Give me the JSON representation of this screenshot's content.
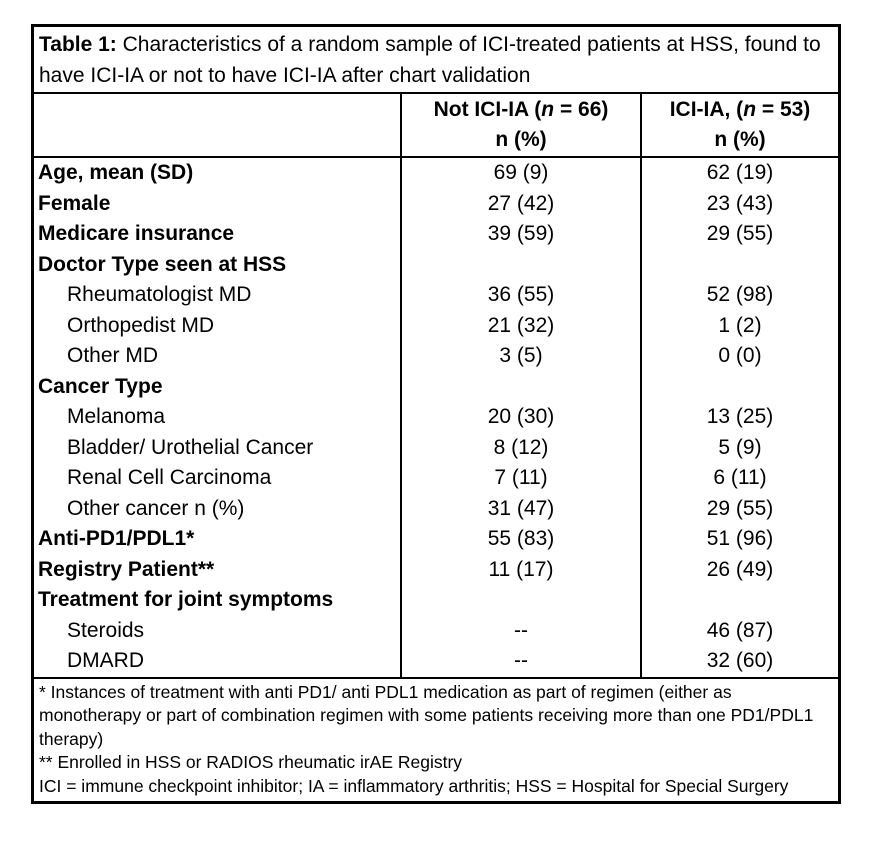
{
  "table": {
    "title": {
      "label": "Table 1:",
      "text": " Characteristics of a random sample of ICI-treated patients at HSS, found to have ICI-IA or not to have ICI-IA after chart validation"
    },
    "columns": [
      {
        "pre": "Not ICI-IA (",
        "n": "n",
        "post": " = 66)",
        "line2": "n (%)"
      },
      {
        "pre": "ICI-IA, (",
        "n": "n",
        "post": " = 53)",
        "line2": "n (%)"
      }
    ],
    "rows": [
      {
        "label": "Age, mean (SD)",
        "values": [
          "69 (9)",
          "62 (19)"
        ]
      },
      {
        "label": "Female",
        "values": [
          "27 (42)",
          "23 (43)"
        ]
      },
      {
        "label": "Medicare insurance",
        "values": [
          "39 (59)",
          "29 (55)"
        ]
      },
      {
        "label": "Doctor Type seen at HSS",
        "values": [
          "",
          ""
        ]
      },
      {
        "label": "Rheumatologist MD",
        "values": [
          "36 (55)",
          "52 (98)"
        ]
      },
      {
        "label": "Orthopedist MD",
        "values": [
          "21 (32)",
          "1 (2)"
        ]
      },
      {
        "label": "Other MD",
        "values": [
          "3 (5)",
          "0 (0)"
        ]
      },
      {
        "label": "Cancer Type",
        "values": [
          "",
          ""
        ]
      },
      {
        "label": "Melanoma",
        "values": [
          "20 (30)",
          "13 (25)"
        ]
      },
      {
        "label": "Bladder/ Urothelial Cancer",
        "values": [
          "8 (12)",
          "5 (9)"
        ]
      },
      {
        "label": "Renal Cell Carcinoma",
        "values": [
          "7 (11)",
          "6 (11)"
        ]
      },
      {
        "label": "Other cancer n (%)",
        "values": [
          "31 (47)",
          "29 (55)"
        ]
      },
      {
        "label": "Anti-PD1/PDL1*",
        "values": [
          "55 (83)",
          "51 (96)"
        ]
      },
      {
        "label": "Registry Patient**",
        "values": [
          "11 (17)",
          "26 (49)"
        ]
      },
      {
        "label": "Treatment for joint symptoms",
        "values": [
          "",
          ""
        ]
      },
      {
        "label": "Steroids",
        "values": [
          "--",
          "46 (87)"
        ]
      },
      {
        "label": "DMARD",
        "values": [
          "--",
          "32 (60)"
        ]
      }
    ],
    "footnotes": [
      "* Instances of treatment with anti PD1/ anti PDL1 medication as part of regimen (either as monotherapy or part of combination regimen with some patients receiving more than one PD1/PDL1 therapy)",
      "** Enrolled in HSS or RADIOS rheumatic irAE Registry",
      "ICI = immune checkpoint inhibitor; IA = inflammatory arthritis; HSS = Hospital for Special Surgery"
    ]
  }
}
